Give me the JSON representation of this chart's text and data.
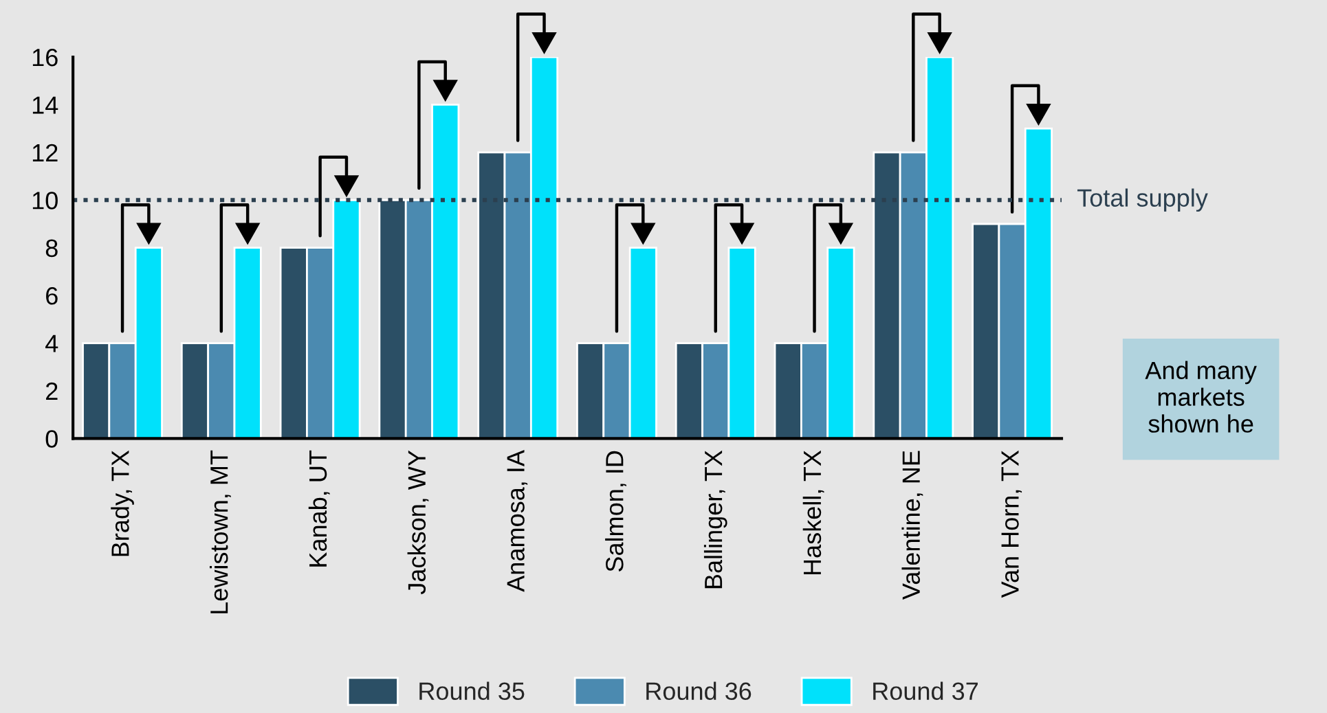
{
  "chart_data": {
    "type": "bar",
    "categories": [
      "Brady, TX",
      "Lewistown, MT",
      "Kanab, UT",
      "Jackson, WY",
      "Anamosa, IA",
      "Salmon, ID",
      "Ballinger, TX",
      "Haskell, TX",
      "Valentine, NE",
      "Van Horn, TX"
    ],
    "series": [
      {
        "name": "Round 35",
        "color": "#2b4f65",
        "values": [
          4,
          4,
          8,
          10,
          12,
          4,
          4,
          4,
          12,
          9
        ]
      },
      {
        "name": "Round 36",
        "color": "#4b8ab0",
        "values": [
          4,
          4,
          8,
          10,
          12,
          4,
          4,
          4,
          12,
          9
        ]
      },
      {
        "name": "Round 37",
        "color": "#00e1fb",
        "values": [
          8,
          8,
          10,
          14,
          16,
          8,
          8,
          8,
          16,
          13
        ]
      }
    ],
    "ylim": [
      0,
      16
    ],
    "yticks": [
      0,
      2,
      4,
      6,
      8,
      10,
      12,
      14,
      16
    ],
    "ref_lines": [
      {
        "axis": "y",
        "value": 10,
        "label": "Total supply",
        "color": "#2b3f4f",
        "line_style": "dotted"
      }
    ],
    "annotations": [
      "And many\nmarkets\nshown he"
    ],
    "grid": false,
    "legend": "bottom"
  }
}
